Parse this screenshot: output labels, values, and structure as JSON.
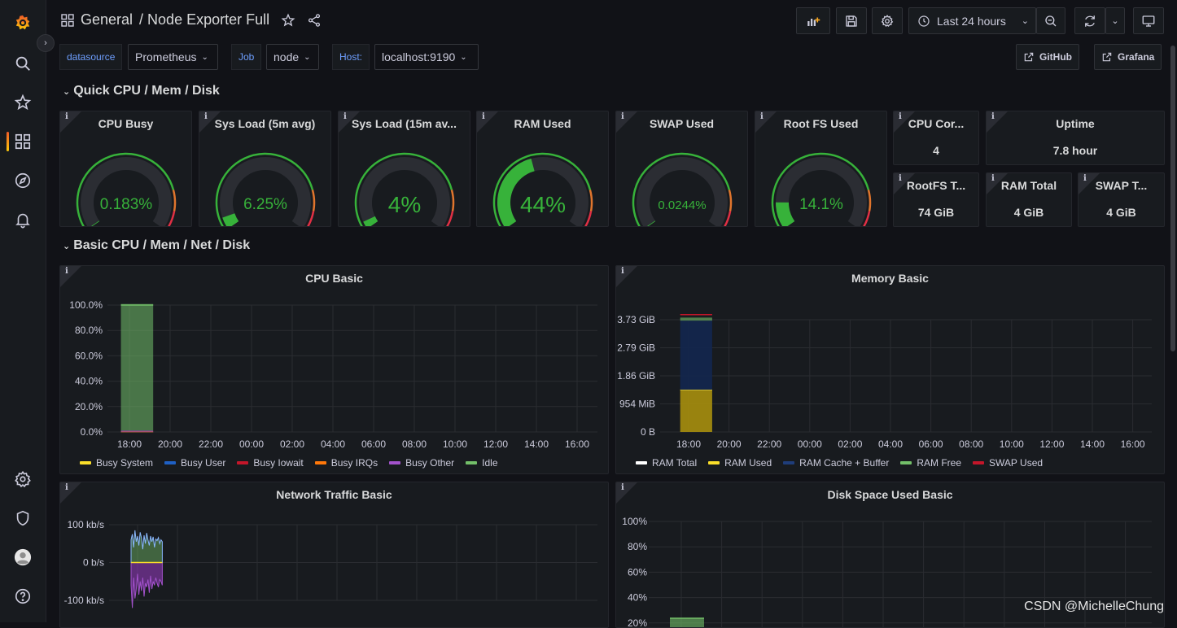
{
  "header": {
    "breadcrumb_folder": "General",
    "breadcrumb_dashboard": "/ Node Exporter Full",
    "time_range": "Last 24 hours"
  },
  "variables": [
    {
      "label": "datasource",
      "value": "Prometheus"
    },
    {
      "label": "Job",
      "value": "node"
    },
    {
      "label": "Host:",
      "value": "localhost:9190"
    }
  ],
  "links": {
    "github": "GitHub",
    "grafana": "Grafana"
  },
  "rows": {
    "quick": "Quick CPU / Mem / Disk",
    "basic": "Basic CPU / Mem / Net / Disk"
  },
  "gauges": [
    {
      "title": "CPU Busy",
      "value": "0.183%",
      "fraction": 0.00183
    },
    {
      "title": "Sys Load (5m avg)",
      "value": "6.25%",
      "fraction": 0.0625
    },
    {
      "title": "Sys Load (15m av...",
      "value": "4%",
      "fraction": 0.04
    },
    {
      "title": "RAM Used",
      "value": "44%",
      "fraction": 0.44
    },
    {
      "title": "SWAP Used",
      "value": "0.0244%",
      "fraction": 0.000244
    },
    {
      "title": "Root FS Used",
      "value": "14.1%",
      "fraction": 0.141
    }
  ],
  "stats": [
    {
      "title": "CPU Cor...",
      "value": "4"
    },
    {
      "title": "Uptime",
      "value": "7.8 hour"
    },
    {
      "title": "RootFS T...",
      "value": "74 GiB"
    },
    {
      "title": "RAM Total",
      "value": "4 GiB"
    },
    {
      "title": "SWAP T...",
      "value": "4 GiB"
    }
  ],
  "colors": {
    "green": "#37b23a",
    "orange": "#e0752d",
    "red": "#e02f44",
    "accent": "#6e9fff"
  },
  "chart_data": [
    {
      "type": "area",
      "title": "CPU Basic",
      "x": [
        "18:00",
        "20:00",
        "22:00",
        "00:00",
        "02:00",
        "04:00",
        "06:00",
        "08:00",
        "10:00",
        "12:00",
        "14:00",
        "16:00"
      ],
      "y_ticks": [
        "100.0%",
        "80.0%",
        "60.0%",
        "40.0%",
        "20.0%",
        "0.0%"
      ],
      "ylim": [
        0,
        100
      ],
      "data_window": [
        "17:35",
        "19:10"
      ],
      "series": [
        {
          "name": "Busy System",
          "color": "#fade2a",
          "value": 0.1
        },
        {
          "name": "Busy User",
          "color": "#1f60c4",
          "value": 0.1
        },
        {
          "name": "Busy Iowait",
          "color": "#c4162a",
          "value": 0.05
        },
        {
          "name": "Busy IRQs",
          "color": "#ff780a",
          "value": 0.0
        },
        {
          "name": "Busy Other",
          "color": "#a352cc",
          "value": 0.8
        },
        {
          "name": "Idle",
          "color": "#73bf69",
          "value": 99.8
        }
      ]
    },
    {
      "type": "area",
      "title": "Memory Basic",
      "x": [
        "18:00",
        "20:00",
        "22:00",
        "00:00",
        "02:00",
        "04:00",
        "06:00",
        "08:00",
        "10:00",
        "12:00",
        "14:00",
        "16:00"
      ],
      "y_ticks": [
        "3.73 GiB",
        "2.79 GiB",
        "1.86 GiB",
        "954 MiB",
        "0 B"
      ],
      "ylim": [
        0,
        3.73
      ],
      "data_window": [
        "17:35",
        "19:10"
      ],
      "series": [
        {
          "name": "RAM Total",
          "color": "#ffffff",
          "value": 3.9
        },
        {
          "name": "RAM Used",
          "color": "#fade2a",
          "value": 1.4
        },
        {
          "name": "RAM Cache + Buffer",
          "color": "#1f3d7a",
          "value": 2.3
        },
        {
          "name": "RAM Free",
          "color": "#73bf69",
          "value": 0.1
        },
        {
          "name": "SWAP Used",
          "color": "#c4162a",
          "value": 0.0
        }
      ]
    },
    {
      "type": "line",
      "title": "Network Traffic Basic",
      "y_ticks": [
        "100 kb/s",
        "0 b/s",
        "-100 kb/s"
      ],
      "ylim": [
        -150,
        100
      ]
    },
    {
      "type": "area",
      "title": "Disk Space Used Basic",
      "y_ticks": [
        "100%",
        "80%",
        "60%",
        "40%",
        "20%"
      ],
      "ylim": [
        0,
        100
      ]
    }
  ],
  "watermark": "CSDN @MichelleChung"
}
